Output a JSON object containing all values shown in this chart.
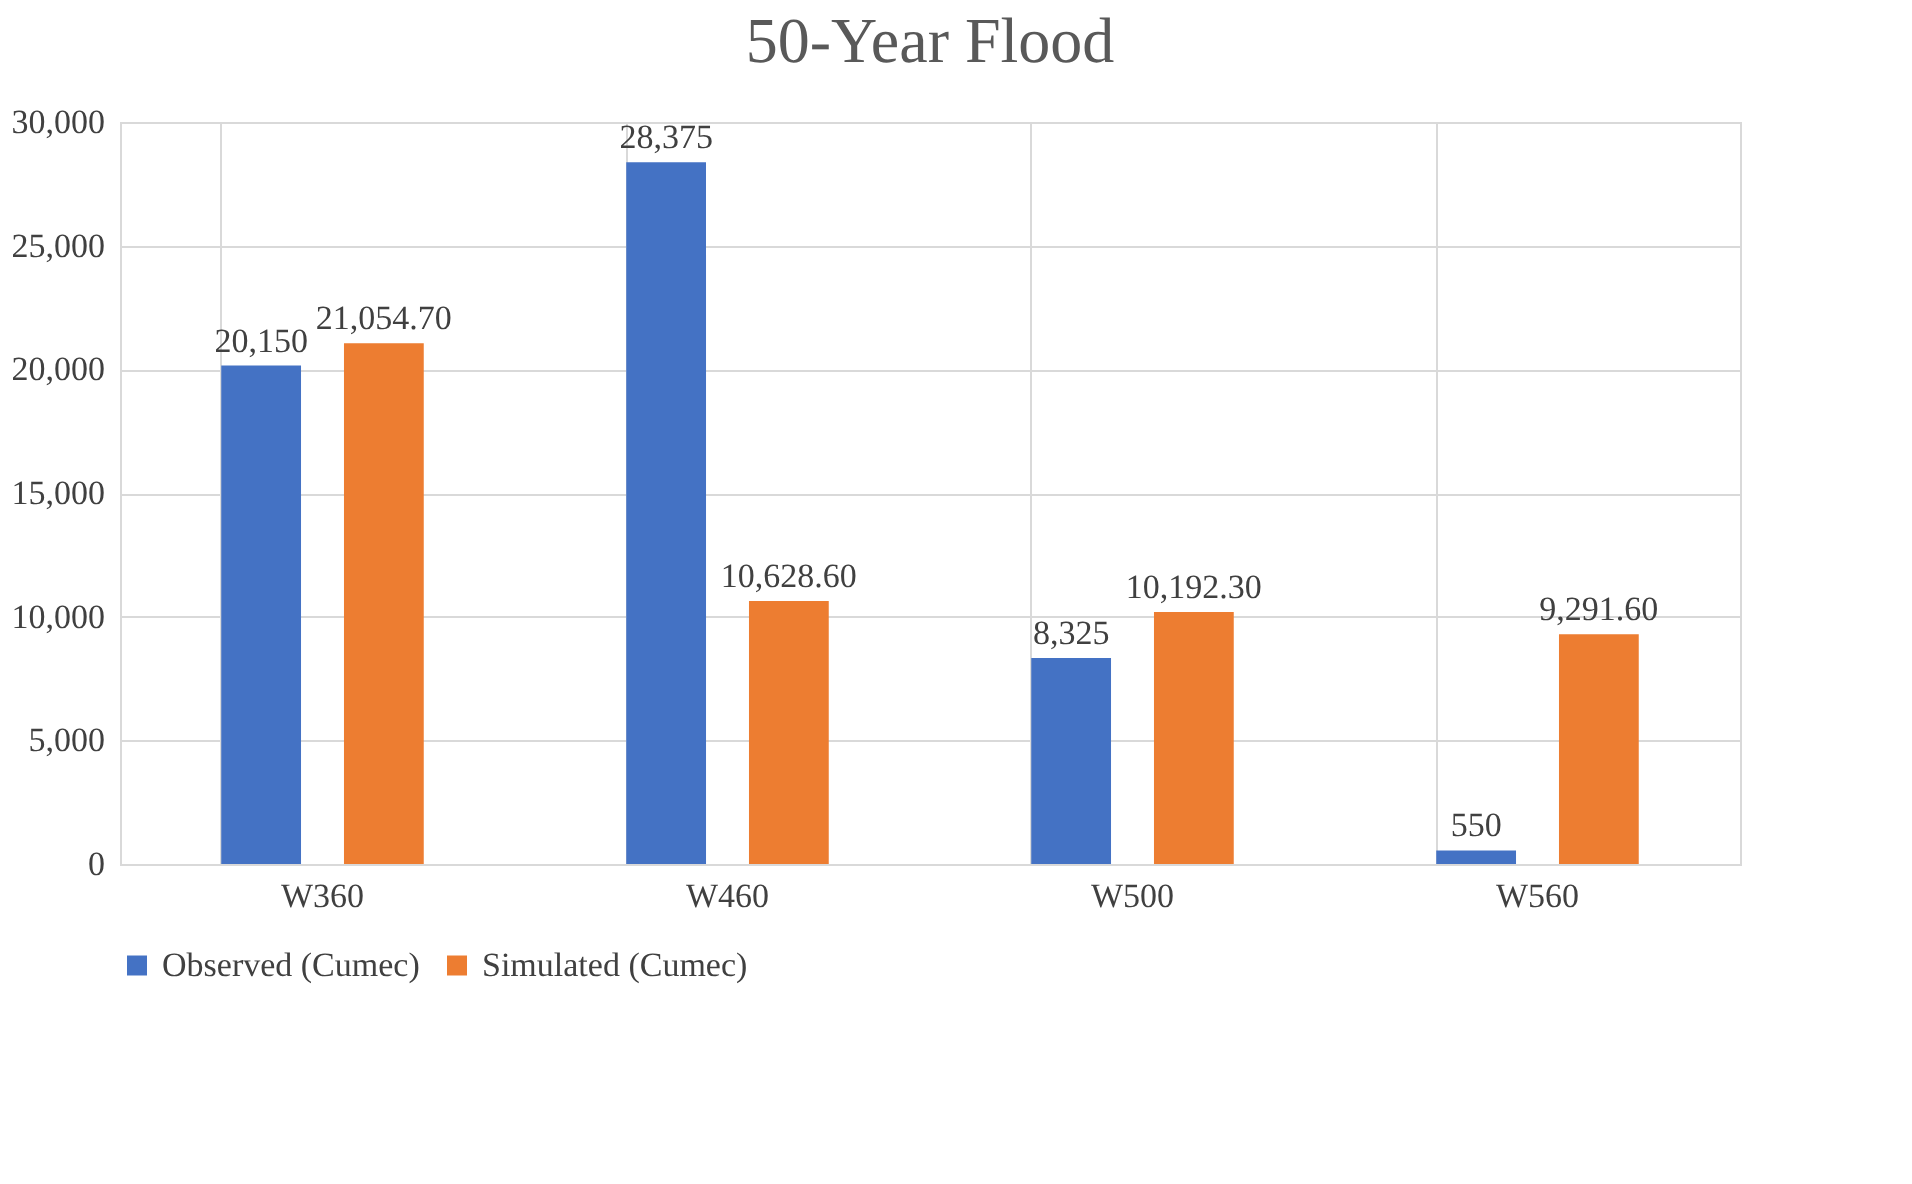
{
  "chart_data": {
    "type": "bar",
    "title": "50-Year Flood",
    "categories": [
      "W360",
      "W460",
      "W500",
      "W560"
    ],
    "series": [
      {
        "name": "Observed (Cumec)",
        "color": "#4472c4",
        "values": [
          20150,
          28375,
          8325,
          550
        ],
        "value_labels": [
          "20,150",
          "28,375",
          "8,325",
          "550"
        ]
      },
      {
        "name": "Simulated (Cumec)",
        "color": "#ed7d31",
        "values": [
          21054.7,
          10628.6,
          10192.3,
          9291.6
        ],
        "value_labels": [
          "21,054.70",
          "10,628.60",
          "10,192.30",
          "9,291.60"
        ]
      }
    ],
    "ylim": [
      0,
      30000
    ],
    "yticks": [
      {
        "value": 0,
        "label": "0"
      },
      {
        "value": 5000,
        "label": "5,000"
      },
      {
        "value": 10000,
        "label": "10,000"
      },
      {
        "value": 15000,
        "label": "15,000"
      },
      {
        "value": 20000,
        "label": "20,000"
      },
      {
        "value": 25000,
        "label": "25,000"
      },
      {
        "value": 30000,
        "label": "30,000"
      }
    ],
    "grid": true,
    "legend": "bottom"
  }
}
